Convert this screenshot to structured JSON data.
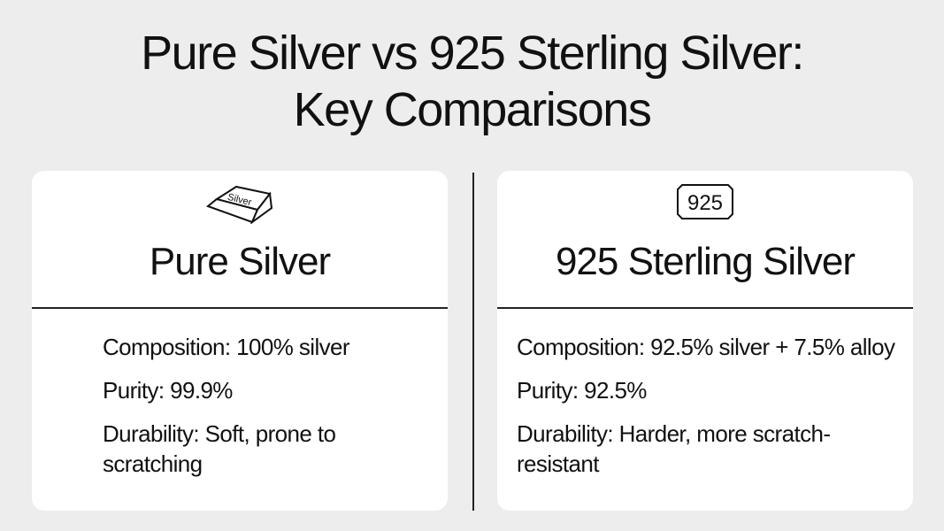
{
  "title_line1": "Pure Silver vs 925 Sterling Silver:",
  "title_line2": "Key Comparisons",
  "cards": [
    {
      "icon": "silver-bar-icon",
      "icon_text": "Silver",
      "heading": "Pure Silver",
      "composition": "Composition: 100% silver",
      "purity": "Purity: 99.9%",
      "durability": "Durability: Soft, prone to scratching"
    },
    {
      "icon": "925-hallmark-icon",
      "icon_text": "925",
      "heading": "925 Sterling Silver",
      "composition": "Composition: 92.5% silver + 7.5% alloy",
      "purity": "Purity: 92.5%",
      "durability": "Durability: Harder, more scratch-resistant"
    }
  ]
}
